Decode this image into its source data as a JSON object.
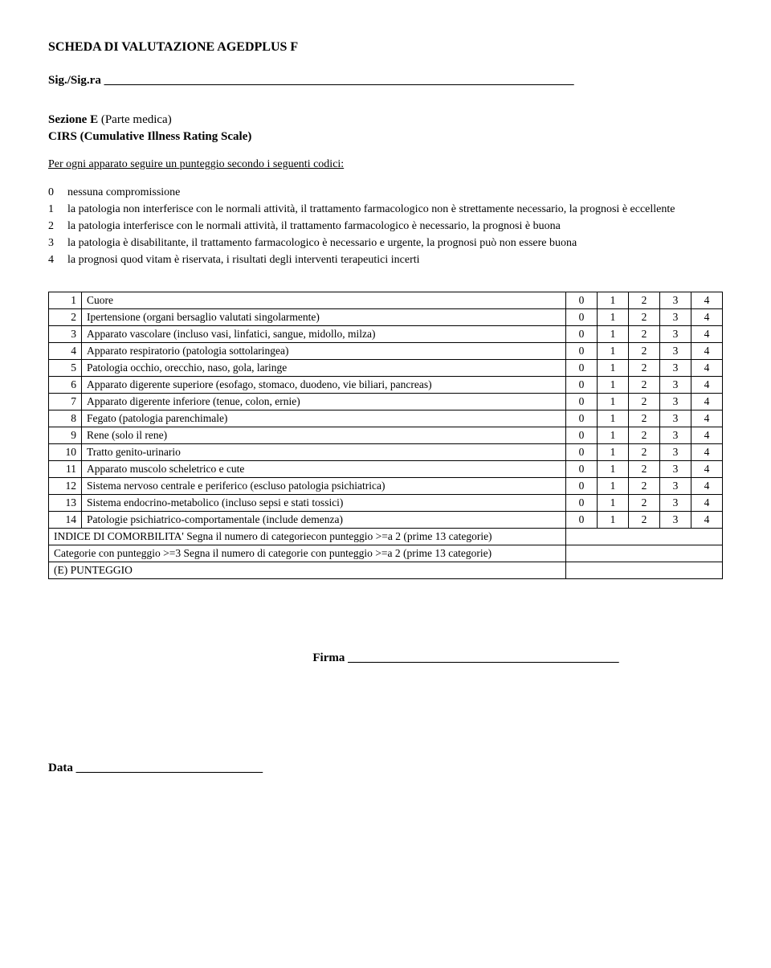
{
  "title": "SCHEDA DI VALUTAZIONE AGEDPLUS F",
  "sig": "Sig./Sig.ra ______________________________________________________________________________",
  "section": {
    "label": "Sezione E",
    "parenthetical": "(Parte medica)",
    "subtitle": "CIRS (Cumulative Illness Rating Scale)",
    "instruction": "Per ogni apparato seguire un punteggio secondo i seguenti codici:"
  },
  "codes": [
    {
      "n": "0",
      "text": "nessuna compromissione"
    },
    {
      "n": "1",
      "text": "la patologia non interferisce con le normali attività, il trattamento farmacologico non è strettamente necessario, la prognosi è eccellente"
    },
    {
      "n": "2",
      "text": "la patologia interferisce con le normali attività, il trattamento farmacologico è necessario, la prognosi è buona"
    },
    {
      "n": "3",
      "text": "la patologia è disabilitante, il trattamento farmacologico è necessario e urgente, la prognosi può non essere buona"
    },
    {
      "n": "4",
      "text": "la prognosi quod vitam è riservata, i risultati degli interventi terapeutici incerti"
    }
  ],
  "scores": [
    "0",
    "1",
    "2",
    "3",
    "4"
  ],
  "rows": [
    {
      "n": "1",
      "label": "Cuore"
    },
    {
      "n": "2",
      "label": "Ipertensione (organi bersaglio valutati singolarmente)"
    },
    {
      "n": "3",
      "label": "Apparato vascolare (incluso vasi, linfatici, sangue, midollo, milza)"
    },
    {
      "n": "4",
      "label": "Apparato respiratorio (patologia sottolaringea)"
    },
    {
      "n": "5",
      "label": "Patologia occhio, orecchio, naso, gola, laringe"
    },
    {
      "n": "6",
      "label": "Apparato digerente superiore (esofago, stomaco, duodeno, vie biliari, pancreas)"
    },
    {
      "n": "7",
      "label": "Apparato digerente inferiore (tenue, colon, ernie)"
    },
    {
      "n": "8",
      "label": "Fegato (patologia parenchimale)"
    },
    {
      "n": "9",
      "label": "Rene (solo il rene)"
    },
    {
      "n": "10",
      "label": "Tratto genito-urinario"
    },
    {
      "n": "11",
      "label": "Apparato muscolo scheletrico e cute"
    },
    {
      "n": "12",
      "label": "Sistema nervoso centrale e periferico (escluso patologia psichiatrica)"
    },
    {
      "n": "13",
      "label": "Sistema endocrino-metabolico (incluso sepsi e stati tossici)"
    },
    {
      "n": "14",
      "label": "Patologie psichiatrico-comportamentale (include demenza)"
    }
  ],
  "footer_rows": [
    "INDICE DI COMORBILITA' Segna il numero di categoriecon punteggio >=a 2 (prime 13 categorie)",
    "Categorie con punteggio >=3 Segna il numero di categorie con punteggio >=a 2 (prime 13 categorie)",
    "(E) PUNTEGGIO"
  ],
  "firma": "Firma _____________________________________________",
  "data": "Data _______________________________"
}
